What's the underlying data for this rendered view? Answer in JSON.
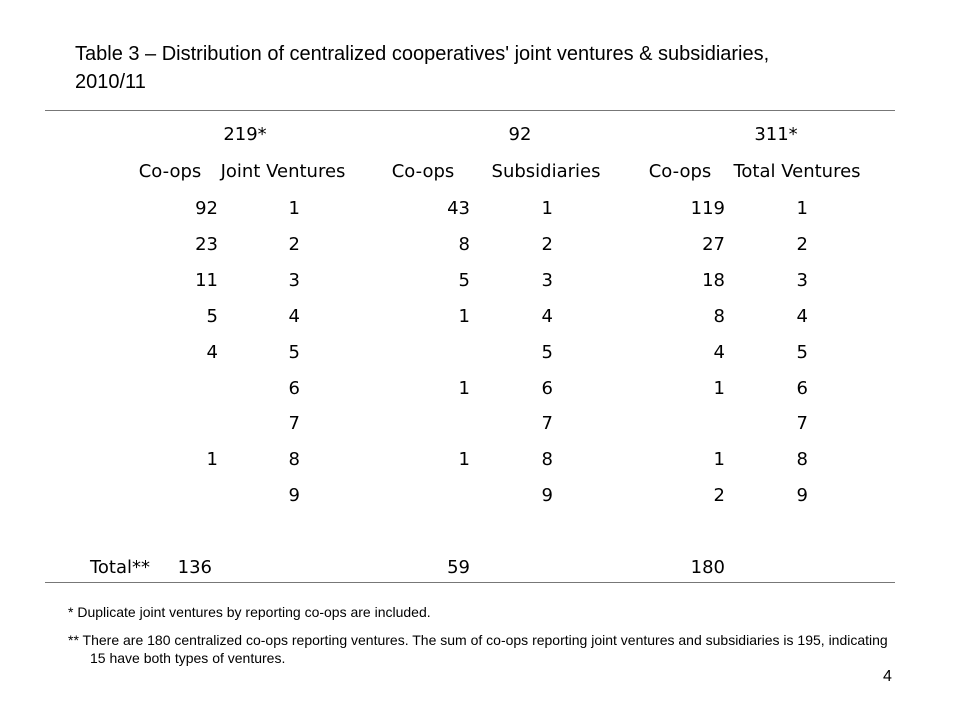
{
  "title": "Table 3 – Distribution of centralized cooperatives' joint ventures & subsidiaries, 2010/11",
  "table": {
    "group_headers": [
      "219*",
      "92",
      "311*"
    ],
    "column_headers": [
      "Co-ops",
      "Joint Ventures",
      "Co-ops",
      "Subsidiaries",
      "Co-ops",
      "Total Ventures"
    ],
    "rows": [
      [
        "92",
        "1",
        "43",
        "1",
        "119",
        "1"
      ],
      [
        "23",
        "2",
        "8",
        "2",
        "27",
        "2"
      ],
      [
        "11",
        "3",
        "5",
        "3",
        "18",
        "3"
      ],
      [
        "5",
        "4",
        "1",
        "4",
        "8",
        "4"
      ],
      [
        "4",
        "5",
        "",
        "5",
        "4",
        "5"
      ],
      [
        "",
        "6",
        "1",
        "6",
        "1",
        "6"
      ],
      [
        "",
        "7",
        "",
        "7",
        "",
        "7"
      ],
      [
        "1",
        "8",
        "1",
        "8",
        "1",
        "8"
      ],
      [
        "",
        "9",
        "",
        "9",
        "2",
        "9"
      ]
    ],
    "total_label": "Total**",
    "totals": [
      "136",
      "59",
      "180"
    ]
  },
  "footnotes": [
    "* Duplicate joint ventures by reporting co-ops are included.",
    "** There are 180 centralized co-ops reporting ventures. The sum of co-ops reporting joint ventures and subsidiaries is 195, indicating 15 have both types of ventures."
  ],
  "page_number": "4"
}
